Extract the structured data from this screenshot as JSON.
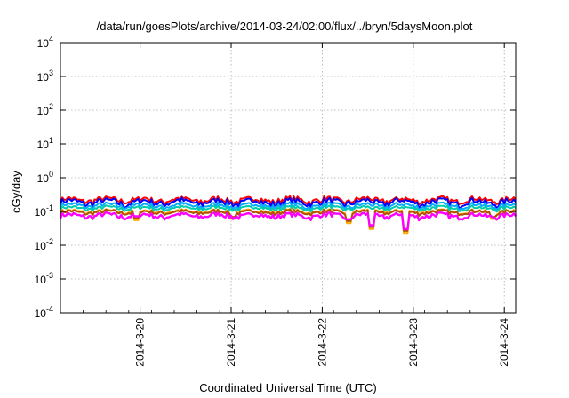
{
  "chart_data": {
    "type": "line",
    "title": "/data/run/goesPlots/archive/2014-03-24/02:00/flux/../bryn/5daysMoon.plot",
    "xlabel": "Coordinated Universal Time (UTC)",
    "ylabel": "cGy/day",
    "y_scale": "log",
    "ylim": [
      0.0001,
      10000
    ],
    "xlim": [
      "2014-03-19 03:00",
      "2014-03-24 03:00"
    ],
    "grid": true,
    "legend": "none",
    "y_ticks": [
      {
        "base": "10",
        "exp": "-4",
        "value": 0.0001
      },
      {
        "base": "10",
        "exp": "-3",
        "value": 0.001
      },
      {
        "base": "10",
        "exp": "-2",
        "value": 0.01
      },
      {
        "base": "10",
        "exp": "-1",
        "value": 0.1
      },
      {
        "base": "10",
        "exp": "0",
        "value": 1
      },
      {
        "base": "10",
        "exp": "1",
        "value": 10
      },
      {
        "base": "10",
        "exp": "2",
        "value": 100
      },
      {
        "base": "10",
        "exp": "3",
        "value": 1000
      },
      {
        "base": "10",
        "exp": "4",
        "value": 10000
      }
    ],
    "x_ticks": [
      {
        "label": "2014-3-20",
        "t": "2014-03-20 00:00"
      },
      {
        "label": "2014-3-21",
        "t": "2014-03-21 00:00"
      },
      {
        "label": "2014-3-22",
        "t": "2014-03-22 00:00"
      },
      {
        "label": "2014-3-23",
        "t": "2014-03-23 00:00"
      },
      {
        "label": "2014-3-24",
        "t": "2014-03-24 00:00"
      }
    ],
    "series": [
      {
        "color": "#ff0000",
        "base": 0.22,
        "amp": 0.05
      },
      {
        "color": "#0000ff",
        "base": 0.19,
        "amp": 0.05
      },
      {
        "color": "#00aaff",
        "base": 0.15,
        "amp": 0.03
      },
      {
        "color": "#00ccaa",
        "base": 0.125,
        "amp": 0.02
      },
      {
        "color": "#ffaa00",
        "base": 0.1,
        "amp": 0.015
      },
      {
        "color": "#b05000",
        "base": 0.095,
        "amp": 0.015
      },
      {
        "color": "#ff00ff",
        "base": 0.075,
        "amp": 0.015
      }
    ],
    "dips": [
      {
        "t": "2014-03-22 13:00",
        "value": 0.03
      },
      {
        "t": "2014-03-22 22:00",
        "value": 0.023
      },
      {
        "t": "2014-03-21 00:30",
        "value": 0.06
      },
      {
        "t": "2014-03-22 07:00",
        "value": 0.045
      },
      {
        "t": "2014-03-19 23:00",
        "value": 0.055
      },
      {
        "t": "2014-03-23 21:00",
        "value": 0.06
      }
    ]
  }
}
